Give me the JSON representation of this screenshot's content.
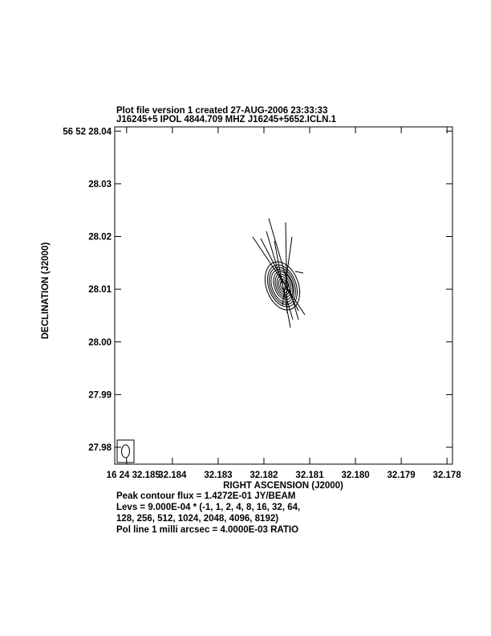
{
  "chart_data": {
    "type": "contour",
    "title_lines": [
      "Plot file version 1  created 27-AUG-2006 23:33:33",
      "J16245+5  IPOL  4844.709 MHZ  J16245+5652.ICLN.1"
    ],
    "x_label": "RIGHT ASCENSION (J2000)",
    "y_label": "DECLINATION (J2000)",
    "xlim": [
      32.18526,
      32.17788
    ],
    "ylim": [
      27.9768,
      28.0408
    ],
    "xticks": [
      {
        "value": 32.185,
        "label": "16 24 32.185"
      },
      32.184,
      32.183,
      32.182,
      32.181,
      {
        "value": 32.18,
        "label": "32.180"
      },
      32.179,
      32.178
    ],
    "yticks": [
      {
        "value": 28.04,
        "label": "56 52 28.04"
      },
      28.03,
      28.02,
      28.01,
      {
        "value": 28,
        "label": "28.00"
      },
      27.99,
      27.98
    ],
    "notes": [
      "Peak contour flux =  1.4272E-01 JY/BEAM",
      "Levs = 9.000E-04 * (-1, 1, 2, 4, 8, 16, 32, 64,",
      "128, 256, 512, 1024, 2048, 4096, 8192)",
      "Pol line 1 milli arcsec =  4.0000E-03 RATIO"
    ]
  }
}
